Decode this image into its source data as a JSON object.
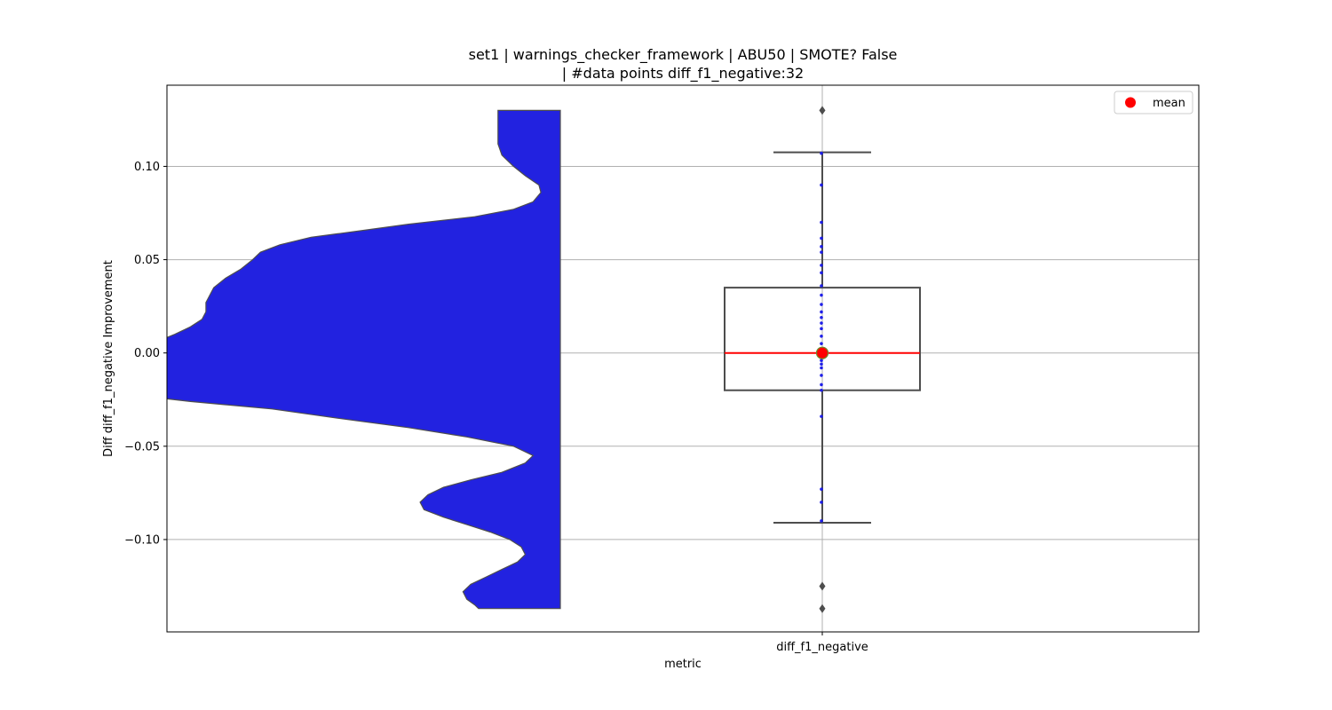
{
  "chart_data": {
    "type": "violin+box+strip",
    "title_line1": "set1 | warnings_checker_framework | ABU50 | SMOTE? False",
    "title_line2": "| #data points diff_f1_negative:32",
    "xlabel": "metric",
    "ylabel": "Diff diff_f1_negative Improvement",
    "categories": [
      "diff_f1_negative"
    ],
    "ylim": [
      -0.1495,
      0.1435
    ],
    "yticks": [
      0.1,
      0.05,
      0.0,
      -0.05,
      -0.1
    ],
    "ytick_labels": [
      "0.10",
      "0.05",
      "0.00",
      "−0.05",
      "−0.10"
    ],
    "grid": true,
    "legend": {
      "position": "top-right",
      "entries": [
        {
          "label": "mean",
          "color": "#ff0000"
        }
      ]
    },
    "violin": {
      "color": "#2222e0",
      "edge_color": "#4d4d4d",
      "y_range": [
        -0.137,
        0.13
      ],
      "density_profile": [
        [
          0.13,
          0.16
        ],
        [
          0.125,
          0.16
        ],
        [
          0.118,
          0.16
        ],
        [
          0.112,
          0.16
        ],
        [
          0.106,
          0.15
        ],
        [
          0.1,
          0.12
        ],
        [
          0.095,
          0.09
        ],
        [
          0.09,
          0.055
        ],
        [
          0.086,
          0.05
        ],
        [
          0.081,
          0.07
        ],
        [
          0.077,
          0.12
        ],
        [
          0.073,
          0.22
        ],
        [
          0.069,
          0.39
        ],
        [
          0.065,
          0.53
        ],
        [
          0.062,
          0.64
        ],
        [
          0.058,
          0.72
        ],
        [
          0.054,
          0.77
        ],
        [
          0.05,
          0.79
        ],
        [
          0.045,
          0.82
        ],
        [
          0.04,
          0.86
        ],
        [
          0.035,
          0.89
        ],
        [
          0.031,
          0.9
        ],
        [
          0.027,
          0.91
        ],
        [
          0.022,
          0.91
        ],
        [
          0.018,
          0.92
        ],
        [
          0.014,
          0.95
        ],
        [
          0.01,
          0.99
        ],
        [
          0.005,
          1.05
        ],
        [
          0.0,
          1.1
        ],
        [
          -0.005,
          1.14
        ],
        [
          -0.01,
          1.16
        ],
        [
          -0.016,
          1.17
        ],
        [
          -0.021,
          1.16
        ],
        [
          -0.026,
          0.95
        ],
        [
          -0.03,
          0.74
        ],
        [
          -0.035,
          0.57
        ],
        [
          -0.04,
          0.39
        ],
        [
          -0.045,
          0.24
        ],
        [
          -0.05,
          0.12
        ],
        [
          -0.055,
          0.07
        ],
        [
          -0.059,
          0.09
        ],
        [
          -0.064,
          0.15
        ],
        [
          -0.068,
          0.23
        ],
        [
          -0.072,
          0.3
        ],
        [
          -0.076,
          0.34
        ],
        [
          -0.08,
          0.36
        ],
        [
          -0.084,
          0.35
        ],
        [
          -0.088,
          0.3
        ],
        [
          -0.092,
          0.24
        ],
        [
          -0.096,
          0.18
        ],
        [
          -0.1,
          0.13
        ],
        [
          -0.104,
          0.1
        ],
        [
          -0.108,
          0.09
        ],
        [
          -0.112,
          0.11
        ],
        [
          -0.116,
          0.15
        ],
        [
          -0.12,
          0.19
        ],
        [
          -0.124,
          0.23
        ],
        [
          -0.128,
          0.25
        ],
        [
          -0.132,
          0.24
        ],
        [
          -0.135,
          0.22
        ],
        [
          -0.137,
          0.21
        ]
      ]
    },
    "box": {
      "q1": -0.02,
      "median": 0.0,
      "q3": 0.035,
      "whisker_low": -0.091,
      "whisker_high": 0.1075,
      "median_color": "#ff0000",
      "edge_color": "#4d4d4d",
      "outliers": [
        0.13,
        -0.125,
        -0.137
      ]
    },
    "mean": {
      "value": 0.0,
      "color": "#ff0000",
      "edge_color": "#6e8b2a"
    },
    "strip_points": {
      "color": "#1f1fe8",
      "values": [
        0.0615,
        0.057,
        0.054,
        0.043,
        0.036,
        0.031,
        0.026,
        0.022,
        0.019,
        0.013,
        0.009,
        0.005,
        0.002,
        0.0,
        0.0,
        0.0,
        -0.002,
        -0.004,
        -0.006,
        -0.008,
        -0.012,
        -0.017,
        -0.02,
        -0.034,
        -0.073,
        -0.08,
        0.107,
        0.09,
        -0.09,
        0.07,
        0.047,
        0.016
      ]
    }
  }
}
